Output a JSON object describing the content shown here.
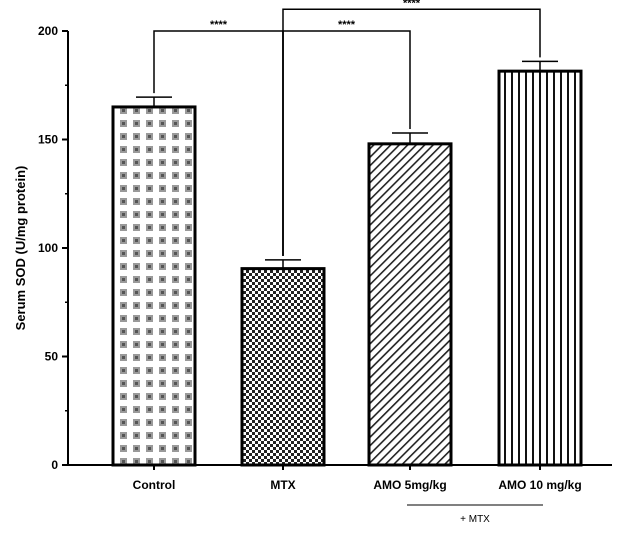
{
  "chart_data": {
    "type": "bar",
    "title": "",
    "xlabel": "",
    "ylabel": "Serum SOD (U/mg protein)",
    "ylim": [
      0,
      200
    ],
    "yticks": [
      0,
      50,
      100,
      150,
      200
    ],
    "grid": false,
    "categories": [
      "Control",
      "MTX",
      "AMO 5mg/kg",
      "AMO 10 mg/kg"
    ],
    "values": [
      165,
      90.5,
      148,
      181.5
    ],
    "errors": [
      4.5,
      4,
      5,
      4.5
    ],
    "patterns": [
      "dots",
      "checker",
      "diagonal",
      "vertical"
    ],
    "significance": [
      {
        "from": 0,
        "to": 1,
        "y": 200,
        "label": "****"
      },
      {
        "from": 1,
        "to": 2,
        "y": 200,
        "label": "****"
      },
      {
        "from": 1,
        "to": 3,
        "y": 210,
        "label": "****"
      }
    ],
    "group_bracket": {
      "from": 2,
      "to": 3,
      "label": "+ MTX"
    }
  }
}
